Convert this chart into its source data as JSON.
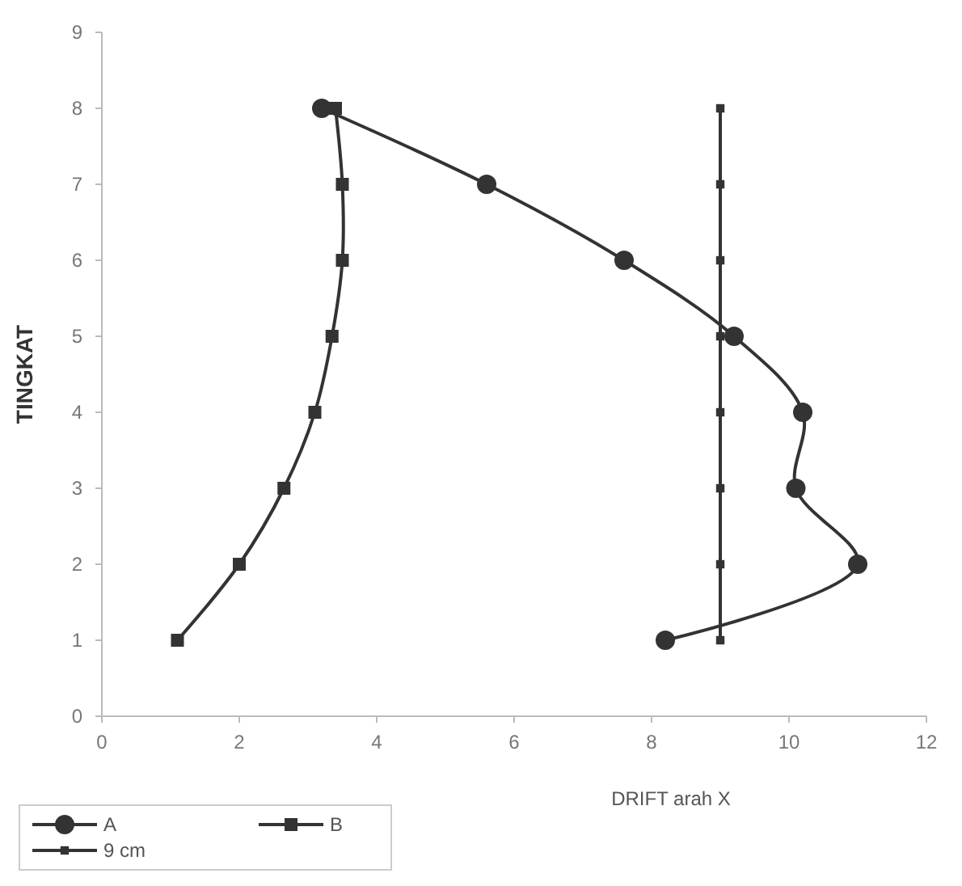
{
  "chart_data": {
    "type": "line",
    "xlabel": "DRIFT arah X",
    "ylabel": "TINGKAT",
    "xlim": [
      0,
      12
    ],
    "xticks": [
      0,
      2,
      4,
      6,
      8,
      10,
      12
    ],
    "ylim": [
      0,
      9
    ],
    "yticks": [
      0,
      1,
      2,
      3,
      4,
      5,
      6,
      7,
      8,
      9
    ],
    "legend": "bottom left",
    "grid": false,
    "series": [
      {
        "name": "A",
        "color": "#333333",
        "marker": "circle",
        "x": [
          8.2,
          11.0,
          10.1,
          10.2,
          9.2,
          7.6,
          5.6,
          3.2
        ],
        "values": [
          1,
          2,
          3,
          4,
          5,
          6,
          7,
          8
        ]
      },
      {
        "name": "B",
        "color": "#333333",
        "marker": "square",
        "x": [
          1.1,
          2.0,
          2.65,
          3.1,
          3.35,
          3.5,
          3.5,
          3.4
        ],
        "values": [
          1,
          2,
          3,
          4,
          5,
          6,
          7,
          8
        ]
      },
      {
        "name": "9 cm",
        "color": "#333333",
        "marker": "square",
        "x": [
          9,
          9,
          9,
          9,
          9,
          9,
          9,
          9
        ],
        "values": [
          1,
          2,
          3,
          4,
          5,
          6,
          7,
          8
        ]
      }
    ]
  }
}
